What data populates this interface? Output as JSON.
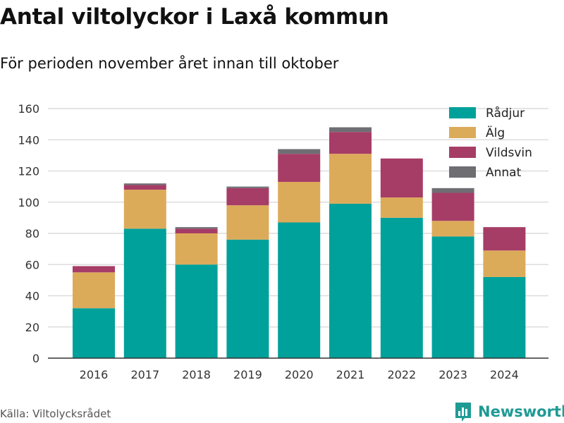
{
  "title": "Antal viltolyckor i Laxå kommun",
  "subtitle": "För perioden november året innan till oktober",
  "source": "Källa: Viltolycksrådet",
  "brand": {
    "name": "Newsworthy",
    "icon": "bar-chart-logo-icon",
    "color": "#1f9a94"
  },
  "chart_data": {
    "type": "bar",
    "stacked": true,
    "categories": [
      "2016",
      "2017",
      "2018",
      "2019",
      "2020",
      "2021",
      "2022",
      "2023",
      "2024"
    ],
    "series": [
      {
        "name": "Rådjur",
        "color": "#00a19a",
        "values": [
          32,
          83,
          60,
          76,
          87,
          99,
          90,
          78,
          52
        ]
      },
      {
        "name": "Älg",
        "color": "#dcab5a",
        "values": [
          23,
          25,
          20,
          22,
          26,
          32,
          13,
          10,
          17
        ]
      },
      {
        "name": "Vildsvin",
        "color": "#a63d66",
        "values": [
          4,
          3,
          3,
          11,
          18,
          14,
          25,
          18,
          15
        ]
      },
      {
        "name": "Annat",
        "color": "#6e6e73",
        "values": [
          0,
          1,
          1,
          1,
          3,
          3,
          0,
          3,
          0
        ]
      }
    ],
    "ylim": [
      0,
      160
    ],
    "yticks": [
      "0",
      "20",
      "40",
      "60",
      "80",
      "100",
      "120",
      "140",
      "160"
    ],
    "grid": true,
    "legend": "top-right"
  }
}
